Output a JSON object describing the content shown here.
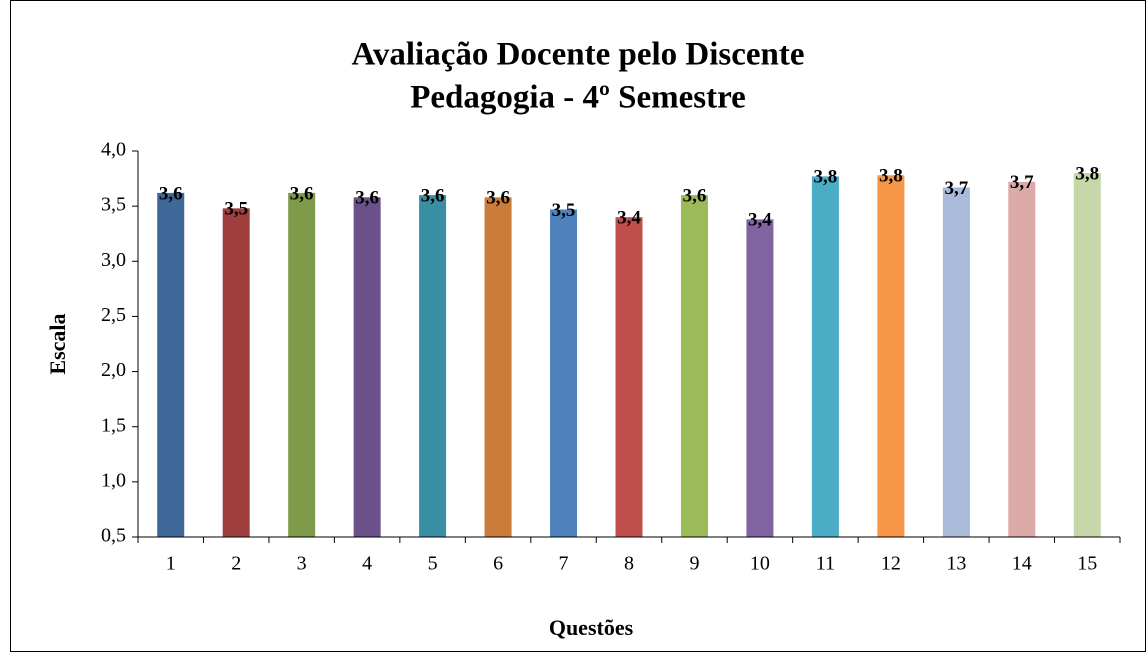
{
  "chart_data": {
    "type": "bar",
    "title": [
      "Avaliação Docente pelo Discente",
      "Pedagogia - 4º Semestre"
    ],
    "x_label": "Questões",
    "y_label": "Escala",
    "categories": [
      "1",
      "2",
      "3",
      "4",
      "5",
      "6",
      "7",
      "8",
      "9",
      "10",
      "11",
      "12",
      "13",
      "14",
      "15"
    ],
    "values": [
      3.62,
      3.48,
      3.62,
      3.58,
      3.6,
      3.58,
      3.47,
      3.4,
      3.6,
      3.38,
      3.77,
      3.78,
      3.67,
      3.72,
      3.8
    ],
    "value_labels": [
      "3,6",
      "3,5",
      "3,6",
      "3,6",
      "3,6",
      "3,6",
      "3,5",
      "3,4",
      "3,6",
      "3,4",
      "3,8",
      "3,8",
      "3,7",
      "3,7",
      "3,8"
    ],
    "colors": [
      "#3e6897",
      "#9e3f3d",
      "#7f9a48",
      "#6a5189",
      "#3a8fa5",
      "#cb7b3a",
      "#4f81bd",
      "#c0504d",
      "#9bbb59",
      "#8064a2",
      "#4bacc6",
      "#f79646",
      "#a9bbd8",
      "#dba9a8",
      "#c6d8a7"
    ],
    "ylim": [
      0.5,
      4.0
    ],
    "yticks": [
      {
        "value": 0.5,
        "label": "0,5"
      },
      {
        "value": 1.0,
        "label": "1,0"
      },
      {
        "value": 1.5,
        "label": "1,5"
      },
      {
        "value": 2.0,
        "label": "2,0"
      },
      {
        "value": 2.5,
        "label": "2,5"
      },
      {
        "value": 3.0,
        "label": "3,0"
      },
      {
        "value": 3.5,
        "label": "3,5"
      },
      {
        "value": 4.0,
        "label": "4,0"
      }
    ],
    "grid": false
  }
}
